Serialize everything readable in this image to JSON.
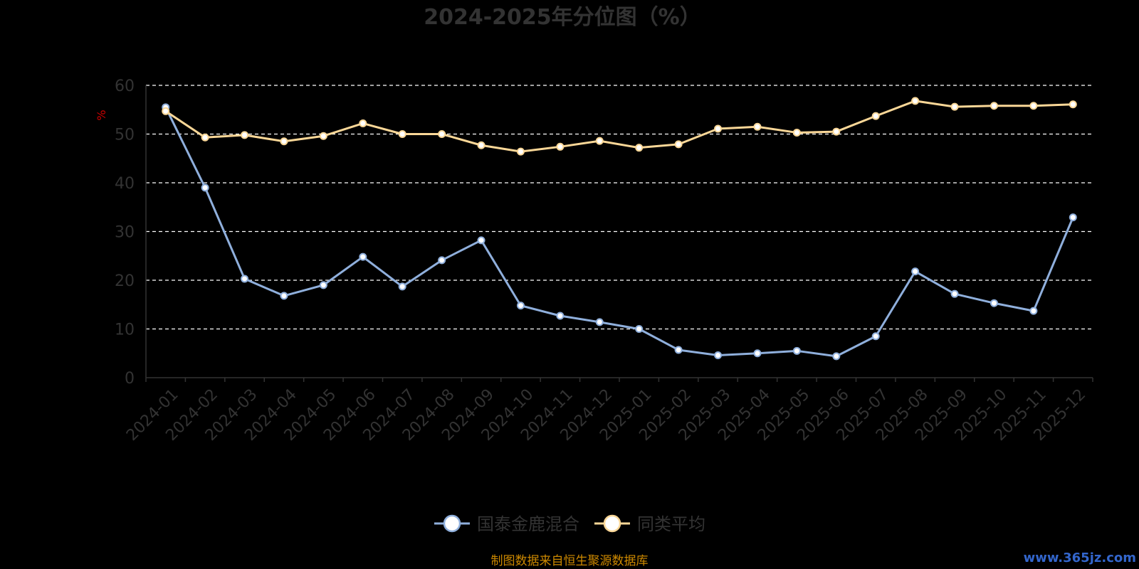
{
  "chart_data": {
    "type": "line",
    "title": "2024-2025年分位图（%）",
    "ylabel": "%",
    "ylim": [
      0,
      60
    ],
    "yticks": [
      0,
      10,
      20,
      30,
      40,
      50,
      60
    ],
    "grid": true,
    "legend_position": "bottom",
    "categories": [
      "2024-01",
      "2024-02",
      "2024-03",
      "2024-04",
      "2024-05",
      "2024-06",
      "2024-07",
      "2024-08",
      "2024-09",
      "2024-10",
      "2024-11",
      "2024-12",
      "2025-01",
      "2025-02",
      "2025-03",
      "2025-04",
      "2025-05",
      "2025-06",
      "2025-07",
      "2025-08",
      "2025-09",
      "2025-10",
      "2025-11",
      "2025-12"
    ],
    "series": [
      {
        "name": "国泰金鹿混合",
        "color": "#8fafdc",
        "values": [
          55.5,
          39,
          20.3,
          16.8,
          19,
          24.8,
          18.7,
          24.1,
          28.2,
          14.8,
          12.7,
          11.4,
          10,
          5.7,
          4.6,
          5,
          5.5,
          4.4,
          8.5,
          21.8,
          17.2,
          15.3,
          13.7,
          32.9
        ]
      },
      {
        "name": "同类平均",
        "color": "#fad797",
        "values": [
          54.7,
          49.3,
          49.8,
          48.5,
          49.6,
          52.2,
          50,
          50,
          47.7,
          46.4,
          47.4,
          48.6,
          47.2,
          47.9,
          51.1,
          51.5,
          50.3,
          50.5,
          53.7,
          56.8,
          55.6,
          55.8,
          55.8,
          56.1
        ]
      }
    ]
  },
  "colors": {
    "background": "#000000",
    "axis": "#333333",
    "grid": "#ffffff",
    "ylabel": "#cc0000",
    "source": "#cc8800",
    "watermark": "#3366cc"
  },
  "source_text": "制图数据来自恒生聚源数据库",
  "watermark": "www.365jz.com"
}
